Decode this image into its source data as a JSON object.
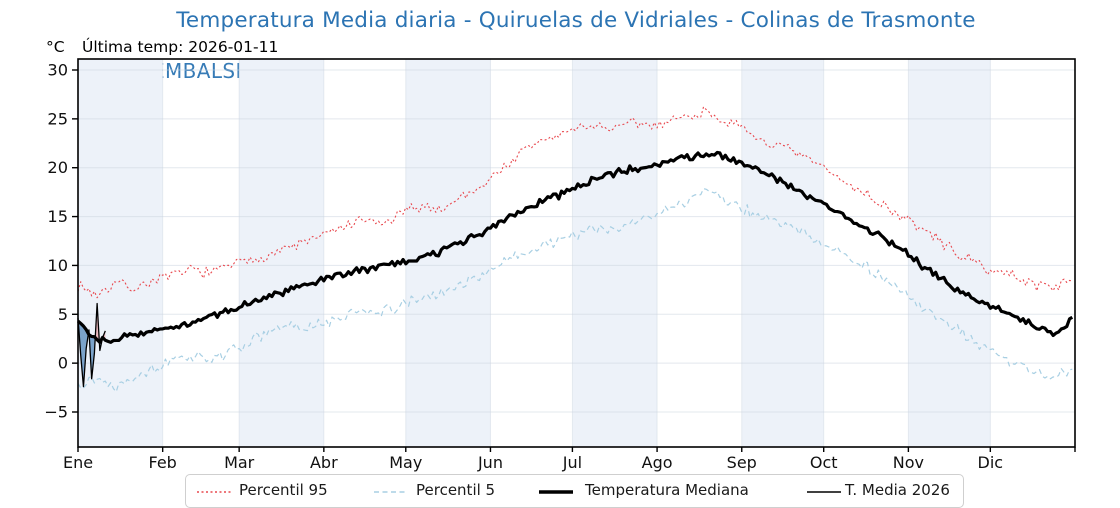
{
  "page": {
    "title": "Temperatura Media diaria - Quiruelas de Vidriales - Colinas de Trasmonte",
    "unit_label": "°C",
    "last_temp_label": "Última temp: 2026-01-11",
    "watermark": "WWW.EMBALSES.NET"
  },
  "colors": {
    "title": "#2c74b3",
    "watermark": "#2c74b3",
    "band": "#edf2f9",
    "grid": "#ccd5e0",
    "frame": "#000000",
    "tick_text": "#111111",
    "p95": "#e8484e",
    "p5": "#a8cfe3",
    "median": "#000000",
    "t2026": "#000000",
    "fill_below": "#5e8fbe",
    "fill_above": "#e8989e"
  },
  "chart_data": {
    "type": "line",
    "title": "Temperatura Media diaria - Quiruelas de Vidriales - Colinas de Trasmonte",
    "ylabel": "°C",
    "ylim": [
      -8,
      31
    ],
    "y_ticks": [
      -5,
      0,
      5,
      10,
      15,
      20,
      25,
      30
    ],
    "x_tick_labels": [
      "Ene",
      "Feb",
      "Mar",
      "Abr",
      "May",
      "Jun",
      "Jul",
      "Ago",
      "Sep",
      "Oct",
      "Nov",
      "Dic"
    ],
    "days_per_month": [
      31,
      28,
      31,
      30,
      31,
      30,
      31,
      31,
      30,
      31,
      30,
      31
    ],
    "grid": true,
    "legend_position": "bottom",
    "series": [
      {
        "name": "Percentil 95",
        "style": "dotted",
        "color_key": "p95",
        "width": 1.1,
        "interval_days": 7,
        "noise": 0.7,
        "seed": 7,
        "values": [
          8.0,
          7.0,
          8.3,
          7.6,
          8.6,
          8.9,
          9.6,
          9.2,
          10.1,
          10.4,
          11.2,
          11.8,
          12.5,
          13.2,
          14.0,
          14.6,
          14.2,
          15.4,
          16.1,
          15.7,
          17.0,
          18.0,
          19.6,
          21.2,
          22.6,
          23.2,
          24.0,
          24.4,
          23.9,
          24.6,
          24.3,
          24.9,
          25.3,
          25.8,
          24.6,
          23.6,
          22.6,
          21.9,
          21.0,
          20.0,
          18.6,
          17.6,
          16.3,
          15.1,
          13.9,
          12.6,
          11.2,
          10.1,
          9.4,
          8.9,
          8.1,
          7.9,
          8.3
        ]
      },
      {
        "name": "Percentil 5",
        "style": "dashed",
        "color_key": "p5",
        "width": 1.2,
        "interval_days": 7,
        "noise": 0.7,
        "seed": 13,
        "values": [
          -2.0,
          -1.6,
          -2.3,
          -1.2,
          -0.6,
          0.2,
          0.8,
          0.4,
          1.2,
          2.2,
          3.2,
          3.8,
          3.5,
          4.2,
          4.8,
          5.6,
          5.2,
          6.0,
          6.6,
          7.2,
          8.0,
          9.0,
          10.0,
          11.0,
          11.8,
          12.6,
          13.2,
          13.8,
          13.4,
          14.4,
          15.2,
          15.8,
          16.6,
          18.0,
          16.6,
          15.6,
          14.8,
          14.2,
          13.2,
          12.2,
          11.2,
          10.2,
          8.8,
          7.4,
          5.9,
          4.6,
          3.3,
          2.0,
          0.8,
          0.0,
          -0.8,
          -1.4,
          -0.6
        ]
      },
      {
        "name": "Temperatura Mediana",
        "style": "solid",
        "color_key": "median",
        "width": 3.2,
        "interval_days": 7,
        "noise": 0.45,
        "seed": 29,
        "values": [
          4.6,
          2.2,
          2.5,
          3.0,
          3.4,
          3.6,
          4.2,
          4.8,
          5.4,
          6.2,
          6.9,
          7.4,
          8.0,
          8.6,
          9.2,
          9.6,
          10.0,
          10.4,
          10.9,
          11.5,
          12.3,
          13.2,
          14.3,
          15.6,
          16.3,
          17.1,
          17.9,
          18.7,
          19.4,
          19.9,
          20.3,
          20.7,
          21.1,
          21.4,
          21.0,
          20.3,
          19.4,
          18.4,
          17.3,
          16.3,
          15.2,
          14.1,
          12.9,
          11.8,
          10.2,
          8.8,
          7.4,
          6.5,
          5.6,
          4.8,
          3.8,
          2.9,
          4.4
        ]
      },
      {
        "name": "T. Media 2026",
        "style": "solid",
        "color_key": "t2026",
        "width": 1.3,
        "interval_days": 1,
        "noise": 0,
        "seed": 0,
        "values": [
          4.6,
          0.8,
          -2.4,
          1.5,
          3.4,
          -1.6,
          1.0,
          6.1,
          1.3,
          2.6,
          3.3
        ]
      }
    ],
    "fill_between": {
      "a": "T. Media 2026",
      "b": "Temperatura Mediana",
      "below_color_key": "fill_below",
      "above_color_key": "fill_above",
      "below_opacity": 0.8,
      "above_opacity": 0.65
    }
  }
}
